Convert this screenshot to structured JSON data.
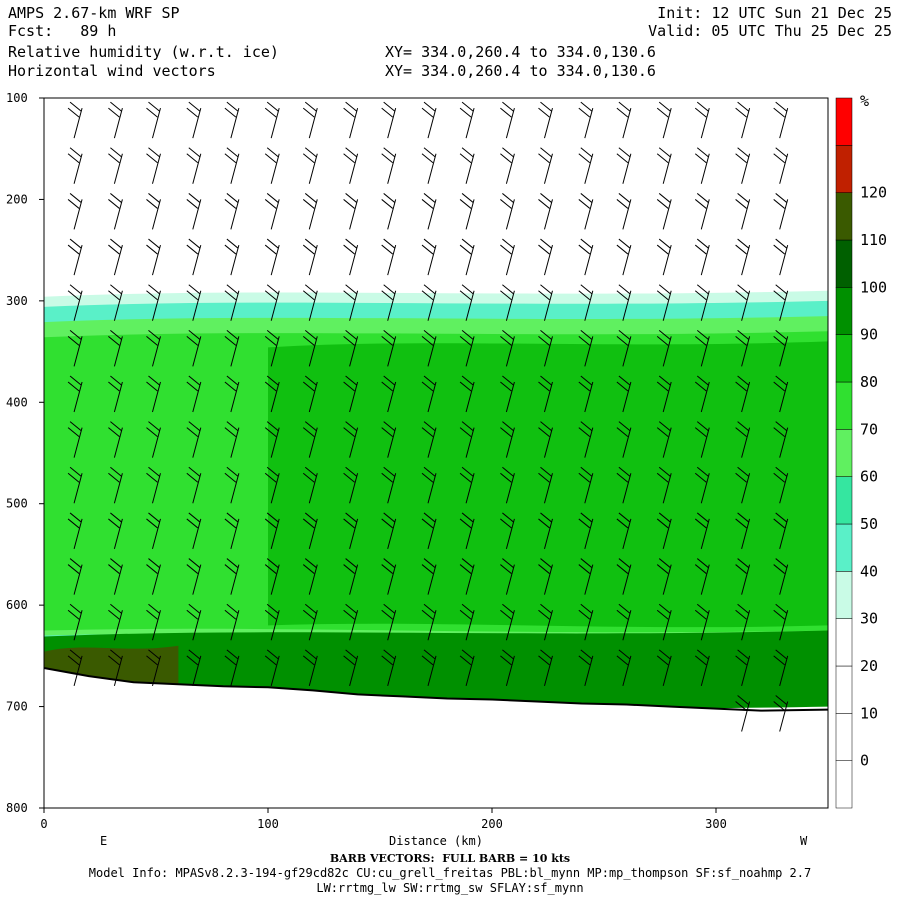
{
  "header": {
    "line1_left": "AMPS 2.67-km WRF SP",
    "line2_left": "Fcst:   89 h",
    "line3_left": "Relative humidity (w.r.t. ice)",
    "line4_left": "Horizontal wind vectors",
    "line1_right": "Init: 12 UTC Sun 21 Dec 25",
    "line2_right": "Valid: 05 UTC Thu 25 Dec 25",
    "xy1": "XY= 334.0,260.4 to 334.0,130.6",
    "xy2": "XY= 334.0,260.4 to 334.0,130.6"
  },
  "footer": {
    "barb_note": "BARB VECTORS:  FULL BARB = 10 kts",
    "model_info": "Model Info: MPASv8.2.3-194-gf29cd82c CU:cu_grell_freitas PBL:bl_mynn MP:mp_thompson SF:sf_noahmp 2.7",
    "model_info2": "LW:rrtmg_lw SW:rrtmg_sw SFLAY:sf_mynn"
  },
  "chart_data": {
    "type": "heatmap",
    "title": "Relative humidity (w.r.t. ice)",
    "xlabel": "Distance (km)",
    "x_end_labels": [
      "E",
      "W"
    ],
    "xlim": [
      0,
      350
    ],
    "ylim": [
      800,
      100
    ],
    "x_ticks": [
      0,
      100,
      200,
      300
    ],
    "y_ticks": [
      100,
      200,
      300,
      400,
      500,
      600,
      700,
      800
    ],
    "colorbar": {
      "unit": "%",
      "levels": [
        0,
        10,
        20,
        30,
        40,
        50,
        60,
        70,
        80,
        90,
        100,
        110,
        120
      ],
      "colors": [
        "#ffffff",
        "#ffffff",
        "#ffffff",
        "#ffffff",
        "#c9fbe6",
        "#5af0c8",
        "#35e6a0",
        "#60f060",
        "#30e030",
        "#10c010",
        "#009000",
        "#006000",
        "#3a5a00",
        "#c02000",
        "#ff0000"
      ],
      "tick_labels": [
        "0",
        "10",
        "20",
        "30",
        "40",
        "50",
        "60",
        "70",
        "80",
        "90",
        "100",
        "110",
        "120"
      ]
    },
    "terrain_pressure": [
      [
        0,
        662
      ],
      [
        20,
        670
      ],
      [
        40,
        676
      ],
      [
        60,
        678
      ],
      [
        80,
        680
      ],
      [
        100,
        681
      ],
      [
        120,
        684
      ],
      [
        140,
        688
      ],
      [
        160,
        690
      ],
      [
        180,
        692
      ],
      [
        200,
        693
      ],
      [
        220,
        695
      ],
      [
        240,
        697
      ],
      [
        260,
        698
      ],
      [
        280,
        700
      ],
      [
        300,
        702
      ],
      [
        320,
        704
      ],
      [
        350,
        703
      ]
    ],
    "rh_regions": [
      {
        "level": 30,
        "top": 290,
        "bottom": 650,
        "x": [
          0,
          350
        ]
      },
      {
        "level": 40,
        "top": 300,
        "bottom": 640,
        "x": [
          0,
          350
        ]
      },
      {
        "level": 60,
        "top": 315,
        "bottom": 630,
        "x": [
          0,
          350
        ]
      },
      {
        "level": 70,
        "top": 330,
        "bottom": 625,
        "x": [
          0,
          350
        ]
      },
      {
        "level": 80,
        "top": 340,
        "bottom": 620,
        "x": [
          100,
          350
        ]
      },
      {
        "level": 90,
        "top": 625,
        "bottom": 700,
        "x": [
          0,
          350
        ]
      },
      {
        "level": 110,
        "top": 640,
        "bottom": 680,
        "x": [
          0,
          60
        ]
      }
    ],
    "wind_barb_columns_km": [
      17,
      35,
      52,
      70,
      87,
      105,
      122,
      140,
      157,
      175,
      192,
      210,
      227,
      245,
      262,
      280,
      297,
      315,
      332
    ]
  }
}
